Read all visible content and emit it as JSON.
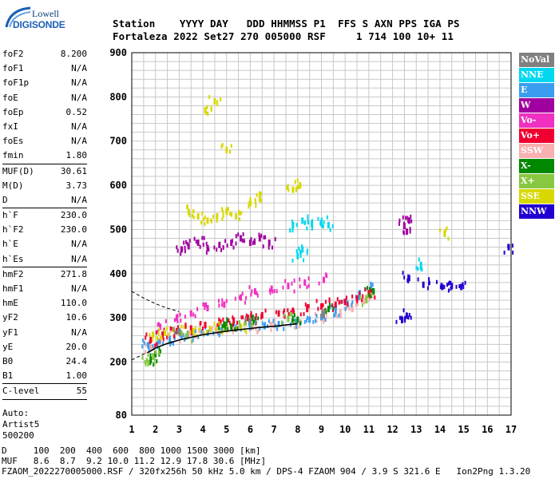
{
  "logo": {
    "line1": "Lowell",
    "line2": "DIGISONDE"
  },
  "header": {
    "line1": "Station    YYYY DAY   DDD HHMMSS P1  FFS S AXN PPS IGA PS",
    "line2": "Fortaleza 2022 Set27 270 005000 RSF     1 714 100 10+ 11"
  },
  "params": [
    {
      "k": "foF2",
      "v": "8.200"
    },
    {
      "k": "foF1",
      "v": "N/A"
    },
    {
      "k": "foF1p",
      "v": "N/A"
    },
    {
      "k": "foE",
      "v": "N/A"
    },
    {
      "k": "foEp",
      "v": "0.52"
    },
    {
      "k": "fxI",
      "v": "N/A"
    },
    {
      "k": "foEs",
      "v": "N/A"
    },
    {
      "k": "fmin",
      "v": "1.80"
    },
    {
      "sep": true
    },
    {
      "k": "MUF(D)",
      "v": "30.61"
    },
    {
      "k": "M(D)",
      "v": "3.73"
    },
    {
      "k": "D",
      "v": "N/A"
    },
    {
      "sep": true
    },
    {
      "k": "h`F",
      "v": "230.0"
    },
    {
      "k": "h`F2",
      "v": "230.0"
    },
    {
      "k": "h`E",
      "v": "N/A"
    },
    {
      "k": "h`Es",
      "v": "N/A"
    },
    {
      "sep": true
    },
    {
      "k": "hmF2",
      "v": "271.8"
    },
    {
      "k": "hmF1",
      "v": "N/A"
    },
    {
      "k": "hmE",
      "v": "110.0"
    },
    {
      "k": "yF2",
      "v": "10.6"
    },
    {
      "k": "yF1",
      "v": "N/A"
    },
    {
      "k": "yE",
      "v": "20.0"
    },
    {
      "k": "B0",
      "v": "24.4"
    },
    {
      "k": "B1",
      "v": "1.00"
    },
    {
      "sep": true
    },
    {
      "k": "C-level",
      "v": "55"
    },
    {
      "sep": true
    }
  ],
  "auto": [
    "Auto:",
    "Artist5",
    "500200"
  ],
  "legend": [
    {
      "label": "NoVal",
      "color": "#808080"
    },
    {
      "label": "NNE",
      "color": "#00d8f0"
    },
    {
      "label": "E",
      "color": "#3a9ef0"
    },
    {
      "label": "W",
      "color": "#a000a0"
    },
    {
      "label": "Vo-",
      "color": "#f030c0"
    },
    {
      "label": "Vo+",
      "color": "#f00030"
    },
    {
      "label": "SSW",
      "color": "#f8b0b0"
    },
    {
      "label": "X-",
      "color": "#008800"
    },
    {
      "label": "X+",
      "color": "#88c840"
    },
    {
      "label": "SSE",
      "color": "#d8d800"
    },
    {
      "label": "NNW",
      "color": "#2000d0"
    }
  ],
  "bottom": {
    "line1": "D     100  200  400  600  800 1000 1500 3000 [km]",
    "line2": "MUF   8.6  8.7  9.2 10.0 11.2 12.9 17.8 30.6 [MHz]",
    "line3": "FZAOM_2022270005000.RSF / 320fx256h 50 kHz 5.0 km / DPS-4 FZAOM 904 / 3.9 S 321.6 E   Ion2Png 1.3.20"
  },
  "chart_data": {
    "type": "scatter",
    "xlim": [
      1,
      17
    ],
    "ylim": [
      80,
      900
    ],
    "x_ticks": [
      1,
      2,
      3,
      4,
      5,
      6,
      7,
      8,
      9,
      10,
      11,
      12,
      13,
      14,
      15,
      16,
      17
    ],
    "y_ticks": [
      80,
      200,
      300,
      400,
      500,
      600,
      700,
      800,
      900
    ],
    "grid": true,
    "profile_trace": [
      [
        1.7,
        222
      ],
      [
        2,
        232
      ],
      [
        2.5,
        242
      ],
      [
        3,
        250
      ],
      [
        3.5,
        256
      ],
      [
        4,
        262
      ],
      [
        4.5,
        266
      ],
      [
        5,
        270
      ],
      [
        5.5,
        273
      ],
      [
        6,
        276
      ],
      [
        6.5,
        279
      ],
      [
        7,
        281
      ],
      [
        7.5,
        284
      ],
      [
        8,
        287
      ]
    ],
    "profile_dashed_upper": [
      [
        1.0,
        360
      ],
      [
        1.5,
        345
      ],
      [
        2.0,
        332
      ],
      [
        2.5,
        322
      ],
      [
        3.0,
        314
      ]
    ],
    "profile_dashed_lower": [
      [
        1.0,
        205
      ],
      [
        1.5,
        218
      ],
      [
        2.0,
        230
      ]
    ],
    "echo_clusters": [
      {
        "source": "SSW",
        "color": "#f8b0b0",
        "points": [
          [
            1.8,
            232
          ],
          [
            2.2,
            248
          ],
          [
            2.8,
            258
          ],
          [
            3.4,
            262
          ],
          [
            3.9,
            268
          ],
          [
            4.6,
            270
          ],
          [
            5.3,
            276
          ],
          [
            6.1,
            279
          ],
          [
            7.0,
            284
          ],
          [
            8.1,
            290
          ],
          [
            9.0,
            300
          ],
          [
            9.8,
            312
          ],
          [
            10.3,
            320
          ],
          [
            10.8,
            338
          ],
          [
            11.1,
            352
          ]
        ]
      },
      {
        "source": "E",
        "color": "#3a9ef0",
        "points": [
          [
            1.7,
            238
          ],
          [
            2.1,
            246
          ],
          [
            2.6,
            252
          ],
          [
            3.1,
            258
          ],
          [
            3.6,
            262
          ],
          [
            4.2,
            266
          ],
          [
            4.8,
            271
          ],
          [
            5.4,
            275
          ],
          [
            6.0,
            279
          ],
          [
            6.6,
            281
          ],
          [
            7.2,
            286
          ],
          [
            7.9,
            291
          ],
          [
            8.5,
            296
          ],
          [
            9.0,
            302
          ],
          [
            9.6,
            316
          ],
          [
            10.1,
            332
          ],
          [
            10.6,
            348
          ],
          [
            11.1,
            365
          ]
        ]
      },
      {
        "source": "Vo+",
        "color": "#f00030",
        "points": [
          [
            1.8,
            250
          ],
          [
            2.3,
            262
          ],
          [
            2.9,
            270
          ],
          [
            3.5,
            276
          ],
          [
            4.1,
            284
          ],
          [
            4.7,
            290
          ],
          [
            5.3,
            294
          ],
          [
            5.9,
            300
          ],
          [
            6.5,
            306
          ],
          [
            7.2,
            310
          ],
          [
            7.8,
            316
          ],
          [
            8.4,
            320
          ],
          [
            9.0,
            326
          ],
          [
            9.6,
            330
          ],
          [
            10.0,
            336
          ],
          [
            10.5,
            344
          ],
          [
            11.0,
            356
          ]
        ]
      },
      {
        "source": "Vo-",
        "color": "#f030c0",
        "points": [
          [
            2.2,
            280
          ],
          [
            2.9,
            300
          ],
          [
            3.5,
            310
          ],
          [
            4.2,
            322
          ],
          [
            4.9,
            330
          ],
          [
            5.6,
            346
          ],
          [
            6.2,
            360
          ],
          [
            6.9,
            366
          ],
          [
            7.6,
            372
          ],
          [
            8.3,
            380
          ],
          [
            9.1,
            386
          ]
        ]
      },
      {
        "source": "W",
        "color": "#a000a0",
        "points": [
          [
            3.1,
            455
          ],
          [
            3.4,
            462
          ],
          [
            3.8,
            470
          ],
          [
            4.2,
            458
          ],
          [
            4.7,
            465
          ],
          [
            5.2,
            470
          ],
          [
            5.6,
            480
          ],
          [
            6.0,
            470
          ],
          [
            6.4,
            480
          ],
          [
            6.8,
            470
          ],
          [
            12.5,
            508
          ],
          [
            12.6,
            495
          ],
          [
            12.7,
            520
          ]
        ]
      },
      {
        "source": "NNE",
        "color": "#00d8f0",
        "points": [
          [
            7.8,
            510
          ],
          [
            8.2,
            520
          ],
          [
            8.6,
            512
          ],
          [
            9.0,
            515
          ],
          [
            9.3,
            510
          ],
          [
            8.0,
            440
          ],
          [
            8.2,
            455
          ],
          [
            13.2,
            420
          ]
        ]
      },
      {
        "source": "SSE",
        "color": "#d8d800",
        "points": [
          [
            1.9,
            262
          ],
          [
            2.4,
            266
          ],
          [
            3.0,
            268
          ],
          [
            3.6,
            270
          ],
          [
            4.3,
            275
          ],
          [
            4.9,
            276
          ],
          [
            5.6,
            279
          ],
          [
            3.4,
            540
          ],
          [
            3.8,
            530
          ],
          [
            4.2,
            520
          ],
          [
            4.6,
            530
          ],
          [
            5.0,
            540
          ],
          [
            5.4,
            530
          ],
          [
            6.0,
            560
          ],
          [
            6.4,
            570
          ],
          [
            7.8,
            590
          ],
          [
            8.1,
            600
          ],
          [
            4.1,
            770
          ],
          [
            4.5,
            790
          ],
          [
            5.0,
            680
          ],
          [
            14.2,
            490
          ]
        ]
      },
      {
        "source": "X-",
        "color": "#008800",
        "points": [
          [
            1.8,
            205
          ],
          [
            2.0,
            218
          ],
          [
            4.9,
            285
          ],
          [
            5.2,
            280
          ],
          [
            6.1,
            300
          ],
          [
            8.0,
            296
          ],
          [
            9.3,
            320
          ],
          [
            11.2,
            360
          ]
        ]
      },
      {
        "source": "X+",
        "color": "#88c840",
        "points": [
          [
            1.7,
            198
          ],
          [
            1.9,
            212
          ],
          [
            3.3,
            258
          ],
          [
            5.8,
            290
          ],
          [
            7.6,
            298
          ],
          [
            10.9,
            340
          ]
        ]
      },
      {
        "source": "NNW",
        "color": "#2000d0",
        "points": [
          [
            12.4,
            295
          ],
          [
            12.6,
            305
          ],
          [
            12.7,
            390
          ],
          [
            13.3,
            375
          ],
          [
            14.1,
            370
          ],
          [
            14.5,
            372
          ],
          [
            14.9,
            370
          ],
          [
            16.9,
            460
          ]
        ]
      },
      {
        "source": "NoVal",
        "color": "#808080",
        "points": [
          [
            3.0,
            270
          ],
          [
            6.0,
            292
          ],
          [
            9.1,
            305
          ]
        ]
      }
    ]
  }
}
